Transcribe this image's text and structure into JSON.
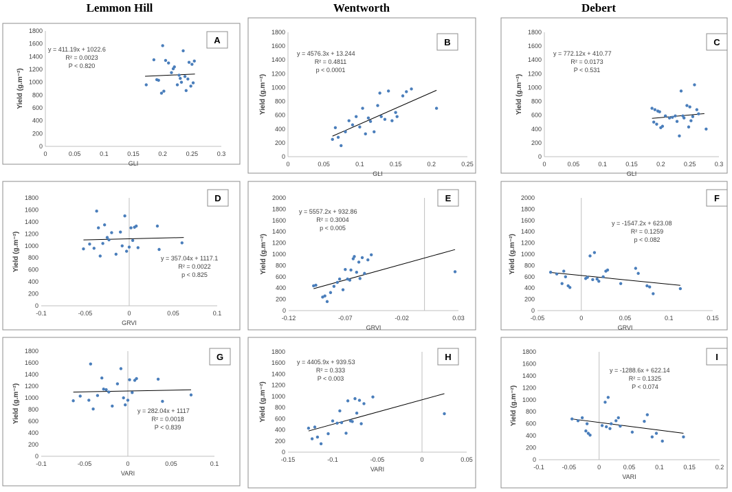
{
  "columns": [
    "Lemmon Hill",
    "Wentworth",
    "Debert"
  ],
  "colors": {
    "point": "#4a7ebb",
    "line": "#000000",
    "frame": "#8c8c8c",
    "axis": "#bfbfbf",
    "text": "#404040"
  },
  "chart_data": [
    {
      "panel": "A",
      "type": "scatter",
      "xlabel": "GLI",
      "ylabel": "Yield (g.m⁻²)",
      "xlim": [
        0,
        0.3
      ],
      "xticks": [
        "0",
        "0.05",
        "0.1",
        "0.15",
        "0.2",
        "0.25",
        "0.3"
      ],
      "ylim": [
        0,
        1800
      ],
      "yticks": [
        "0",
        "200",
        "400",
        "600",
        "800",
        "1000",
        "1200",
        "1400",
        "1600",
        "1800"
      ],
      "equation": "y = 411.19x + 1022.6",
      "r2": "R² = 0.0023",
      "p": "P < 0.820",
      "trend": [
        [
          0.17,
          1092.5
        ],
        [
          0.255,
          1127.5
        ]
      ],
      "x": [
        0.172,
        0.185,
        0.19,
        0.193,
        0.198,
        0.2,
        0.202,
        0.205,
        0.21,
        0.215,
        0.218,
        0.22,
        0.225,
        0.228,
        0.23,
        0.232,
        0.235,
        0.238,
        0.24,
        0.243,
        0.245,
        0.248,
        0.25,
        0.252,
        0.254
      ],
      "y": [
        960,
        1350,
        1040,
        1030,
        830,
        1570,
        860,
        1340,
        1300,
        1150,
        1210,
        1240,
        960,
        1110,
        1060,
        1000,
        1490,
        1090,
        870,
        1050,
        1310,
        940,
        1280,
        990,
        1330
      ]
    },
    {
      "panel": "B",
      "type": "scatter",
      "xlabel": "GLI",
      "ylabel": "Yield (g.m⁻²)",
      "xlim": [
        0,
        0.25
      ],
      "xticks": [
        "0",
        "0.05",
        "0.1",
        "0.15",
        "0.2",
        "0.25"
      ],
      "ylim": [
        0,
        1800
      ],
      "yticks": [
        "0",
        "200",
        "400",
        "600",
        "800",
        "1000",
        "1200",
        "1400",
        "1600",
        "1800"
      ],
      "equation": "y = 4576.3x + 13.244",
      "r2": "R² = 0.4811",
      "p": "p < 0.0001",
      "trend": [
        [
          0.062,
          297
        ],
        [
          0.207,
          961
        ]
      ],
      "x": [
        0.062,
        0.066,
        0.07,
        0.074,
        0.08,
        0.085,
        0.09,
        0.095,
        0.1,
        0.104,
        0.108,
        0.112,
        0.115,
        0.12,
        0.125,
        0.128,
        0.13,
        0.135,
        0.14,
        0.145,
        0.15,
        0.152,
        0.16,
        0.165,
        0.172,
        0.207
      ],
      "y": [
        250,
        420,
        280,
        160,
        360,
        520,
        460,
        580,
        430,
        700,
        330,
        560,
        510,
        360,
        740,
        920,
        580,
        540,
        950,
        520,
        640,
        580,
        880,
        940,
        980,
        700
      ]
    },
    {
      "panel": "C",
      "type": "scatter",
      "xlabel": "GLI",
      "ylabel": "Yield (g.m⁻²)",
      "xlim": [
        0,
        0.3
      ],
      "xticks": [
        "0",
        "0.05",
        "0.1",
        "0.15",
        "0.2",
        "0.25",
        "0.3"
      ],
      "ylim": [
        0,
        1800
      ],
      "yticks": [
        "0",
        "200",
        "400",
        "600",
        "800",
        "1000",
        "1200",
        "1400",
        "1600",
        "1800"
      ],
      "equation": "y = 772.12x + 410.77",
      "r2": "R² = 0.0173",
      "p": "P < 0.531",
      "trend": [
        [
          0.185,
          554
        ],
        [
          0.275,
          623
        ]
      ],
      "x": [
        0.185,
        0.188,
        0.19,
        0.193,
        0.195,
        0.198,
        0.2,
        0.203,
        0.208,
        0.215,
        0.22,
        0.225,
        0.228,
        0.232,
        0.235,
        0.238,
        0.24,
        0.245,
        0.248,
        0.25,
        0.252,
        0.255,
        0.258,
        0.262,
        0.265,
        0.278
      ],
      "y": [
        700,
        500,
        680,
        470,
        660,
        650,
        420,
        440,
        590,
        560,
        570,
        590,
        510,
        300,
        950,
        590,
        560,
        740,
        430,
        720,
        520,
        580,
        1040,
        680,
        620,
        400
      ]
    },
    {
      "panel": "D",
      "type": "scatter",
      "xlabel": "GRVI",
      "ylabel": "Yield (g.m⁻²)",
      "xlim": [
        -0.1,
        0.1
      ],
      "xticks": [
        "-0.1",
        "-0.05",
        "0",
        "0.05",
        "0.1"
      ],
      "ylim": [
        0,
        1800
      ],
      "yticks": [
        "0",
        "200",
        "400",
        "600",
        "800",
        "1000",
        "1200",
        "1400",
        "1600",
        "1800"
      ],
      "equation": "y = 357.04x + 1117.1",
      "r2": "R² = 0.0022",
      "p": "p < 0.825",
      "trend": [
        [
          -0.052,
          1098.5
        ],
        [
          0.062,
          1139.2
        ]
      ],
      "x": [
        -0.052,
        -0.045,
        -0.04,
        -0.037,
        -0.035,
        -0.033,
        -0.03,
        -0.028,
        -0.025,
        -0.023,
        -0.02,
        -0.015,
        -0.01,
        -0.008,
        -0.005,
        -0.003,
        0,
        0.002,
        0.004,
        0.006,
        0.008,
        0.01,
        0.032,
        0.034,
        0.06
      ],
      "y": [
        950,
        1030,
        960,
        1580,
        1300,
        830,
        1040,
        1350,
        1140,
        1100,
        1220,
        860,
        1230,
        1000,
        1500,
        910,
        980,
        1300,
        1090,
        1310,
        1330,
        970,
        1330,
        940,
        1050
      ]
    },
    {
      "panel": "E",
      "type": "scatter",
      "xlabel": "GRVI",
      "ylabel": "Yield (g.m⁻²)",
      "xlim": [
        -0.12,
        0.03
      ],
      "xticks": [
        "-0.12",
        "-0.07",
        "-0.02",
        "0.03"
      ],
      "ylim": [
        0,
        2000
      ],
      "yticks": [
        "0",
        "200",
        "400",
        "600",
        "800",
        "1000",
        "1200",
        "1400",
        "1600",
        "1800",
        "2000"
      ],
      "equation": "y = 5557.2x + 932.86",
      "r2": "R² = 0.3004",
      "p": "p < 0.005",
      "trend": [
        [
          -0.098,
          388.3
        ],
        [
          0.027,
          1083
        ]
      ],
      "x": [
        -0.098,
        -0.096,
        -0.09,
        -0.088,
        -0.086,
        -0.083,
        -0.08,
        -0.077,
        -0.075,
        -0.072,
        -0.07,
        -0.068,
        -0.066,
        -0.065,
        -0.063,
        -0.062,
        -0.06,
        -0.058,
        -0.057,
        -0.055,
        -0.053,
        -0.05,
        -0.047,
        0.027
      ],
      "y": [
        440,
        450,
        240,
        260,
        160,
        320,
        430,
        500,
        560,
        370,
        730,
        560,
        540,
        720,
        920,
        960,
        680,
        860,
        570,
        940,
        660,
        900,
        990,
        690
      ]
    },
    {
      "panel": "F",
      "type": "scatter",
      "xlabel": "GRVI",
      "ylabel": "Yield (g.m⁻²)",
      "xlim": [
        -0.05,
        0.15
      ],
      "xticks": [
        "-0.05",
        "0",
        "0.05",
        "0.1",
        "0.15"
      ],
      "ylim": [
        0,
        2000
      ],
      "yticks": [
        "0",
        "200",
        "400",
        "600",
        "800",
        "1000",
        "1200",
        "1400",
        "1600",
        "1800",
        "2000"
      ],
      "equation": "y = -1547.2x + 623.08",
      "r2": "R² = 0.1259",
      "p": "p < 0.082",
      "trend": [
        [
          -0.035,
          677.2
        ],
        [
          0.113,
          448.3
        ]
      ],
      "x": [
        -0.035,
        -0.028,
        -0.022,
        -0.02,
        -0.018,
        -0.015,
        -0.013,
        0.005,
        0.007,
        0.01,
        0.013,
        0.015,
        0.018,
        0.02,
        0.025,
        0.028,
        0.03,
        0.045,
        0.062,
        0.065,
        0.075,
        0.078,
        0.082,
        0.113
      ],
      "y": [
        680,
        650,
        480,
        700,
        600,
        440,
        410,
        570,
        590,
        970,
        550,
        1030,
        560,
        520,
        600,
        700,
        720,
        480,
        750,
        660,
        440,
        420,
        300,
        390
      ]
    },
    {
      "panel": "G",
      "type": "scatter",
      "xlabel": "VARI",
      "ylabel": "Yield (g.m⁻²)",
      "xlim": [
        -0.1,
        0.1
      ],
      "xticks": [
        "-0.1",
        "-0.05",
        "0",
        "0.05",
        "0.1"
      ],
      "ylim": [
        0,
        1800
      ],
      "yticks": [
        "0",
        "200",
        "400",
        "600",
        "800",
        "1000",
        "1200",
        "1400",
        "1600",
        "1800"
      ],
      "equation": "y = 282.04x + 1117",
      "r2": "R² = 0.0018",
      "p": "P < 0.839",
      "trend": [
        [
          -0.063,
          1099.2
        ],
        [
          0.073,
          1137.6
        ]
      ],
      "x": [
        -0.063,
        -0.055,
        -0.045,
        -0.043,
        -0.04,
        -0.035,
        -0.03,
        -0.028,
        -0.025,
        -0.022,
        -0.018,
        -0.012,
        -0.008,
        -0.005,
        -0.003,
        0,
        0.002,
        0.005,
        0.008,
        0.01,
        0.035,
        0.04,
        0.073
      ],
      "y": [
        950,
        1030,
        960,
        1580,
        810,
        1040,
        1340,
        1150,
        1140,
        1100,
        860,
        1240,
        1500,
        1000,
        880,
        960,
        1310,
        1090,
        1300,
        1330,
        1320,
        940,
        1050
      ]
    },
    {
      "panel": "H",
      "type": "scatter",
      "xlabel": "VARI",
      "ylabel": "Yield (g.m⁻²)",
      "xlim": [
        -0.15,
        0.05
      ],
      "xticks": [
        "-0.15",
        "-0.1",
        "-0.05",
        "0",
        "0.05"
      ],
      "ylim": [
        0,
        1800
      ],
      "yticks": [
        "0",
        "200",
        "400",
        "600",
        "800",
        "1000",
        "1200",
        "1400",
        "1600",
        "1800"
      ],
      "equation": "y = 4405.9x + 939.53",
      "r2": "R² = 0.333",
      "p": "P < 0.003",
      "trend": [
        [
          -0.127,
          380
        ],
        [
          0.025,
          1050
        ]
      ],
      "x": [
        -0.127,
        -0.123,
        -0.12,
        -0.117,
        -0.113,
        -0.105,
        -0.1,
        -0.095,
        -0.092,
        -0.09,
        -0.085,
        -0.083,
        -0.08,
        -0.078,
        -0.075,
        -0.073,
        -0.07,
        -0.068,
        -0.065,
        -0.055,
        0.025
      ],
      "y": [
        430,
        240,
        450,
        270,
        150,
        330,
        560,
        520,
        740,
        530,
        340,
        920,
        560,
        550,
        960,
        700,
        930,
        510,
        870,
        990,
        690
      ]
    },
    {
      "panel": "I",
      "type": "scatter",
      "xlabel": "VARI",
      "ylabel": "Yield (g.m⁻²)",
      "xlim": [
        -0.1,
        0.2
      ],
      "xticks": [
        "-0.1",
        "-0.05",
        "0",
        "0.05",
        "0.1",
        "0.15",
        "0.2"
      ],
      "ylim": [
        0,
        1800
      ],
      "yticks": [
        "0",
        "200",
        "400",
        "600",
        "800",
        "1000",
        "1200",
        "1400",
        "1600",
        "1800"
      ],
      "equation": "y = -1288.6x + 622.14",
      "r2": "R² = 0.1325",
      "p": "P < 0.074",
      "trend": [
        [
          -0.045,
          680
        ],
        [
          0.14,
          442
        ]
      ],
      "x": [
        -0.045,
        -0.035,
        -0.028,
        -0.022,
        -0.02,
        -0.018,
        -0.015,
        0.005,
        0.01,
        0.012,
        0.015,
        0.018,
        0.02,
        0.028,
        0.032,
        0.035,
        0.055,
        0.075,
        0.08,
        0.088,
        0.095,
        0.105,
        0.14
      ],
      "y": [
        680,
        650,
        700,
        480,
        600,
        440,
        410,
        570,
        960,
        550,
        1040,
        520,
        600,
        650,
        700,
        560,
        460,
        640,
        750,
        380,
        440,
        310,
        380
      ]
    }
  ]
}
